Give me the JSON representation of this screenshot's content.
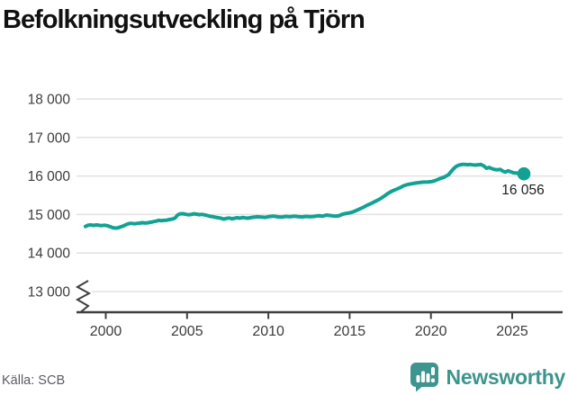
{
  "page": {
    "title": "Befolkningsutveckling på Tjörn",
    "source": "Källa: SCB",
    "brand": "Newsworthy"
  },
  "colors": {
    "line": "#12a294",
    "brand_teal": "#3e948e",
    "title_text": "#111111",
    "tick_text": "#3c3c3c",
    "grid": "#e2e2e2",
    "axis": "#3f3f3f",
    "end_label_text": "#1d1d1d",
    "source_text": "#5a5a64"
  },
  "chart_data": {
    "type": "line",
    "title": "Befolkningsutveckling på Tjörn",
    "xlabel": "",
    "ylabel": "",
    "x_range": [
      1998.2,
      2028.1
    ],
    "y_range": [
      13000,
      18000
    ],
    "y_axis_break": true,
    "grid": "horizontal",
    "x_ticks": [
      2000,
      2005,
      2010,
      2015,
      2020,
      2025
    ],
    "x_tick_labels": [
      "2000",
      "2005",
      "2010",
      "2015",
      "2020",
      "2025"
    ],
    "y_ticks": [
      13000,
      14000,
      15000,
      16000,
      17000,
      18000
    ],
    "y_tick_labels": [
      "13 000",
      "14 000",
      "15 000",
      "16 000",
      "17 000",
      "18 000"
    ],
    "end_label": "16 056",
    "end_point": {
      "x": 2025.72,
      "y": 16056
    },
    "series": [
      {
        "name": "Befolkning",
        "points": [
          [
            1998.75,
            14690
          ],
          [
            1998.92,
            14722
          ],
          [
            1999.08,
            14730
          ],
          [
            1999.25,
            14718
          ],
          [
            1999.42,
            14728
          ],
          [
            1999.58,
            14720
          ],
          [
            1999.75,
            14712
          ],
          [
            1999.92,
            14722
          ],
          [
            2000.08,
            14710
          ],
          [
            2000.25,
            14688
          ],
          [
            2000.42,
            14660
          ],
          [
            2000.58,
            14648
          ],
          [
            2000.75,
            14655
          ],
          [
            2000.92,
            14680
          ],
          [
            2001.08,
            14700
          ],
          [
            2001.25,
            14738
          ],
          [
            2001.42,
            14765
          ],
          [
            2001.58,
            14772
          ],
          [
            2001.75,
            14760
          ],
          [
            2001.92,
            14768
          ],
          [
            2002.08,
            14775
          ],
          [
            2002.25,
            14788
          ],
          [
            2002.42,
            14778
          ],
          [
            2002.58,
            14785
          ],
          [
            2002.75,
            14800
          ],
          [
            2002.92,
            14812
          ],
          [
            2003.08,
            14828
          ],
          [
            2003.25,
            14848
          ],
          [
            2003.42,
            14840
          ],
          [
            2003.58,
            14848
          ],
          [
            2003.75,
            14852
          ],
          [
            2003.92,
            14868
          ],
          [
            2004.08,
            14882
          ],
          [
            2004.25,
            14905
          ],
          [
            2004.42,
            14985
          ],
          [
            2004.58,
            15018
          ],
          [
            2004.75,
            15022
          ],
          [
            2004.92,
            15005
          ],
          [
            2005.08,
            14992
          ],
          [
            2005.25,
            15000
          ],
          [
            2005.42,
            15018
          ],
          [
            2005.58,
            15010
          ],
          [
            2005.75,
            14995
          ],
          [
            2005.92,
            15002
          ],
          [
            2006.08,
            14990
          ],
          [
            2006.25,
            14972
          ],
          [
            2006.42,
            14952
          ],
          [
            2006.58,
            14945
          ],
          [
            2006.75,
            14928
          ],
          [
            2006.92,
            14915
          ],
          [
            2007.08,
            14902
          ],
          [
            2007.25,
            14882
          ],
          [
            2007.42,
            14898
          ],
          [
            2007.58,
            14908
          ],
          [
            2007.75,
            14890
          ],
          [
            2007.92,
            14902
          ],
          [
            2008.08,
            14915
          ],
          [
            2008.25,
            14905
          ],
          [
            2008.42,
            14922
          ],
          [
            2008.58,
            14912
          ],
          [
            2008.75,
            14905
          ],
          [
            2008.92,
            14918
          ],
          [
            2009.08,
            14930
          ],
          [
            2009.33,
            14942
          ],
          [
            2009.58,
            14932
          ],
          [
            2009.83,
            14925
          ],
          [
            2010.08,
            14948
          ],
          [
            2010.33,
            14958
          ],
          [
            2010.58,
            14940
          ],
          [
            2010.83,
            14932
          ],
          [
            2011.08,
            14952
          ],
          [
            2011.33,
            14942
          ],
          [
            2011.58,
            14955
          ],
          [
            2011.83,
            14945
          ],
          [
            2012.08,
            14938
          ],
          [
            2012.33,
            14952
          ],
          [
            2012.58,
            14942
          ],
          [
            2012.83,
            14950
          ],
          [
            2013.08,
            14968
          ],
          [
            2013.33,
            14955
          ],
          [
            2013.58,
            14985
          ],
          [
            2013.83,
            14972
          ],
          [
            2014.08,
            14958
          ],
          [
            2014.33,
            14965
          ],
          [
            2014.58,
            15010
          ],
          [
            2014.83,
            15030
          ],
          [
            2015.08,
            15052
          ],
          [
            2015.33,
            15088
          ],
          [
            2015.58,
            15135
          ],
          [
            2015.83,
            15185
          ],
          [
            2016.08,
            15240
          ],
          [
            2016.33,
            15288
          ],
          [
            2016.58,
            15340
          ],
          [
            2016.83,
            15395
          ],
          [
            2017.08,
            15462
          ],
          [
            2017.33,
            15540
          ],
          [
            2017.58,
            15602
          ],
          [
            2017.83,
            15648
          ],
          [
            2018.08,
            15692
          ],
          [
            2018.33,
            15748
          ],
          [
            2018.58,
            15780
          ],
          [
            2018.83,
            15798
          ],
          [
            2019.08,
            15818
          ],
          [
            2019.33,
            15832
          ],
          [
            2019.58,
            15840
          ],
          [
            2019.83,
            15845
          ],
          [
            2020.08,
            15855
          ],
          [
            2020.33,
            15892
          ],
          [
            2020.58,
            15938
          ],
          [
            2020.83,
            15972
          ],
          [
            2021.08,
            16030
          ],
          [
            2021.25,
            16120
          ],
          [
            2021.42,
            16200
          ],
          [
            2021.58,
            16255
          ],
          [
            2021.75,
            16285
          ],
          [
            2021.92,
            16298
          ],
          [
            2022.08,
            16302
          ],
          [
            2022.25,
            16292
          ],
          [
            2022.42,
            16298
          ],
          [
            2022.58,
            16290
          ],
          [
            2022.75,
            16282
          ],
          [
            2022.92,
            16292
          ],
          [
            2023.08,
            16298
          ],
          [
            2023.25,
            16262
          ],
          [
            2023.42,
            16200
          ],
          [
            2023.58,
            16222
          ],
          [
            2023.75,
            16192
          ],
          [
            2023.92,
            16168
          ],
          [
            2024.08,
            16158
          ],
          [
            2024.25,
            16172
          ],
          [
            2024.42,
            16128
          ],
          [
            2024.58,
            16102
          ],
          [
            2024.75,
            16135
          ],
          [
            2024.92,
            16108
          ],
          [
            2025.08,
            16082
          ],
          [
            2025.25,
            16078
          ],
          [
            2025.42,
            16062
          ],
          [
            2025.58,
            16072
          ],
          [
            2025.72,
            16056
          ]
        ]
      }
    ]
  }
}
